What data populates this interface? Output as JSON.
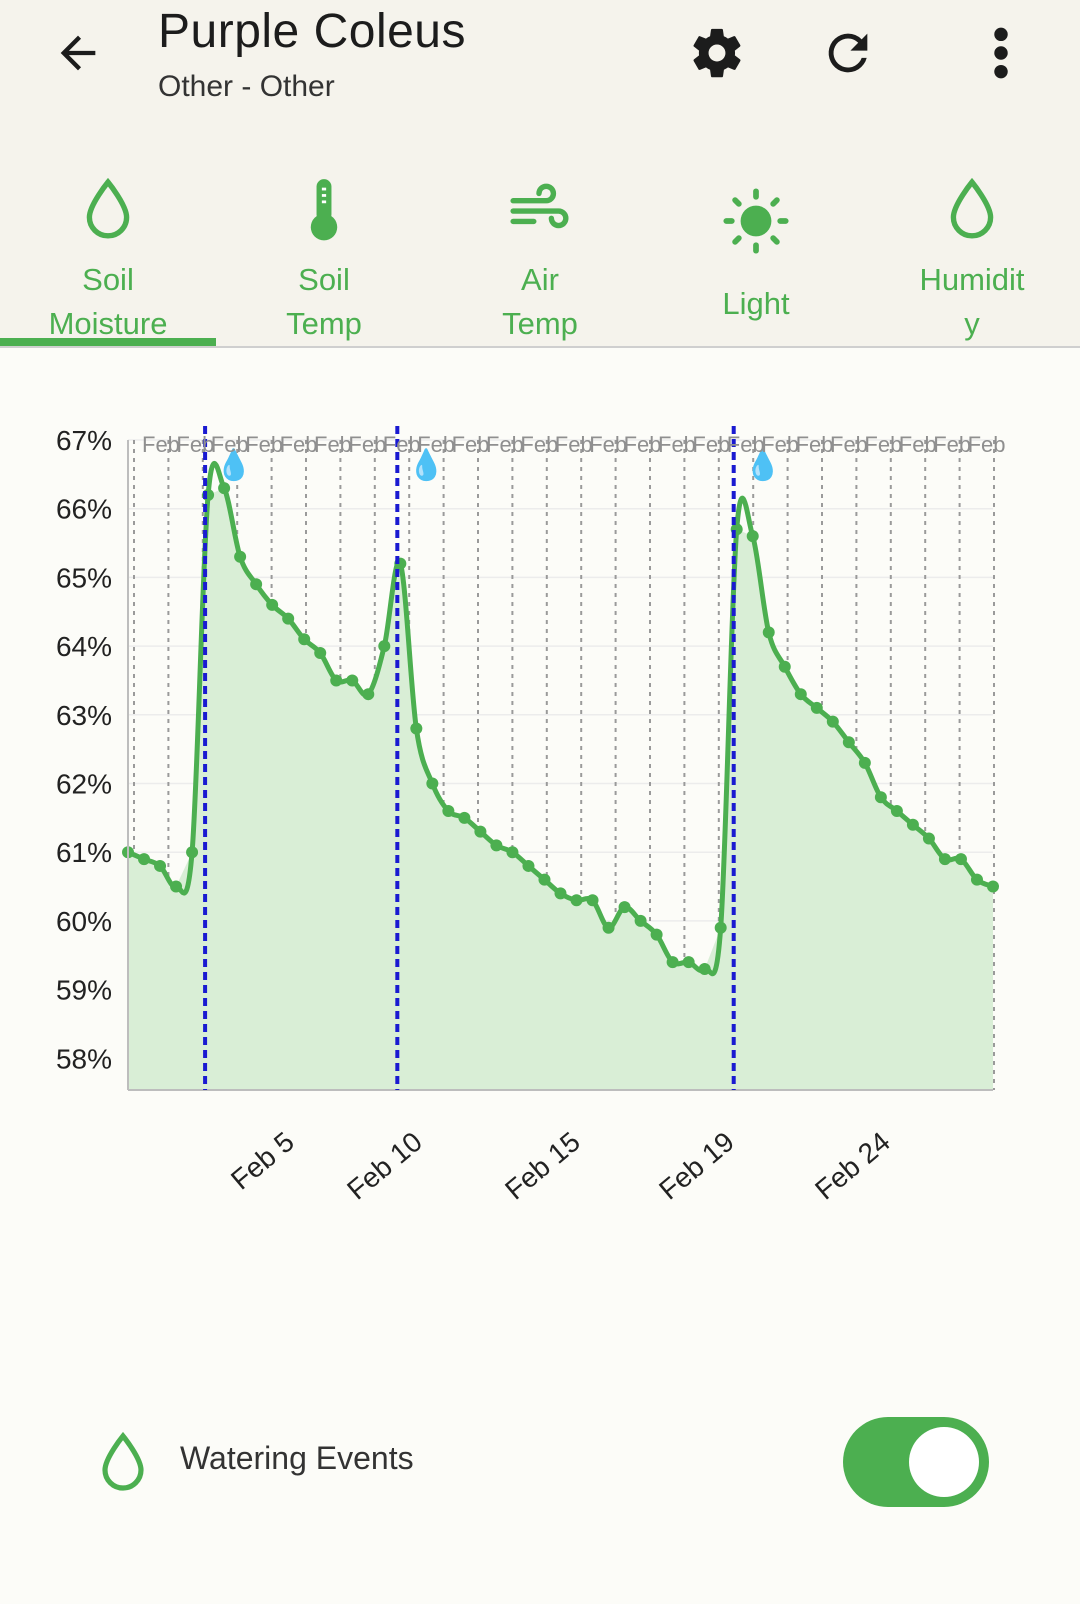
{
  "header": {
    "title": "Purple Coleus",
    "subtitle": "Other - Other"
  },
  "tabs": [
    {
      "label_line1": "Soil",
      "label_line2": "Moisture",
      "icon": "droplet-outline-icon",
      "active": true
    },
    {
      "label_line1": "Soil",
      "label_line2": "Temp",
      "icon": "thermometer-icon",
      "active": false
    },
    {
      "label_line1": "Air",
      "label_line2": "Temp",
      "icon": "wind-icon",
      "active": false
    },
    {
      "label_line1": "Light",
      "label_line2": "",
      "icon": "sun-icon",
      "active": false
    },
    {
      "label_line1": "Humidit",
      "label_line2": "y",
      "icon": "droplet-outline-icon",
      "active": false
    }
  ],
  "colors": {
    "accent": "#4caf50",
    "fill": "#d9eed6",
    "watering_line": "#1a1ad1",
    "background": "#fcfcf8",
    "header_bg": "#f5f3ec"
  },
  "chart_data": {
    "type": "area",
    "y_tick_labels": [
      "67%",
      "66%",
      "65%",
      "64%",
      "63%",
      "62%",
      "61%",
      "60%",
      "59%",
      "58%"
    ],
    "ylim": [
      57.4,
      67
    ],
    "x_labels": [
      "Feb 5",
      "Feb 10",
      "Feb 15",
      "Feb 19",
      "Feb 24"
    ],
    "top_day_labels": [
      "Feb",
      "Feb",
      "Feb",
      "Feb",
      "Feb",
      "Feb",
      "Feb",
      "Feb",
      "Feb",
      "Feb",
      "Feb",
      "Feb",
      "Feb",
      "Feb",
      "Feb",
      "Feb",
      "Feb",
      "Feb",
      "Feb",
      "Feb",
      "Feb",
      "Feb",
      "Feb",
      "Feb",
      "Feb"
    ],
    "watering_markers": [
      "💧",
      "💧",
      "💧"
    ],
    "series": [
      {
        "values": [
          61.0,
          60.9,
          60.8,
          60.5,
          61.0,
          66.2,
          66.3,
          65.3,
          64.9,
          64.6,
          64.4,
          64.1,
          63.9,
          63.5,
          63.5,
          63.3,
          64.0,
          65.2,
          62.8,
          62.0,
          61.6,
          61.5,
          61.3,
          61.1,
          61.0,
          60.8,
          60.6,
          60.4,
          60.3,
          60.3,
          59.9,
          60.2,
          60.0,
          59.8,
          59.4,
          59.4,
          59.3,
          59.9,
          65.7,
          65.6,
          64.2,
          63.7,
          63.3,
          63.1,
          62.9,
          62.6,
          62.3,
          61.8,
          61.6,
          61.4,
          61.2,
          60.9,
          60.9,
          60.6,
          60.5
        ]
      }
    ]
  },
  "watering": {
    "label": "Watering Events",
    "enabled": true
  }
}
